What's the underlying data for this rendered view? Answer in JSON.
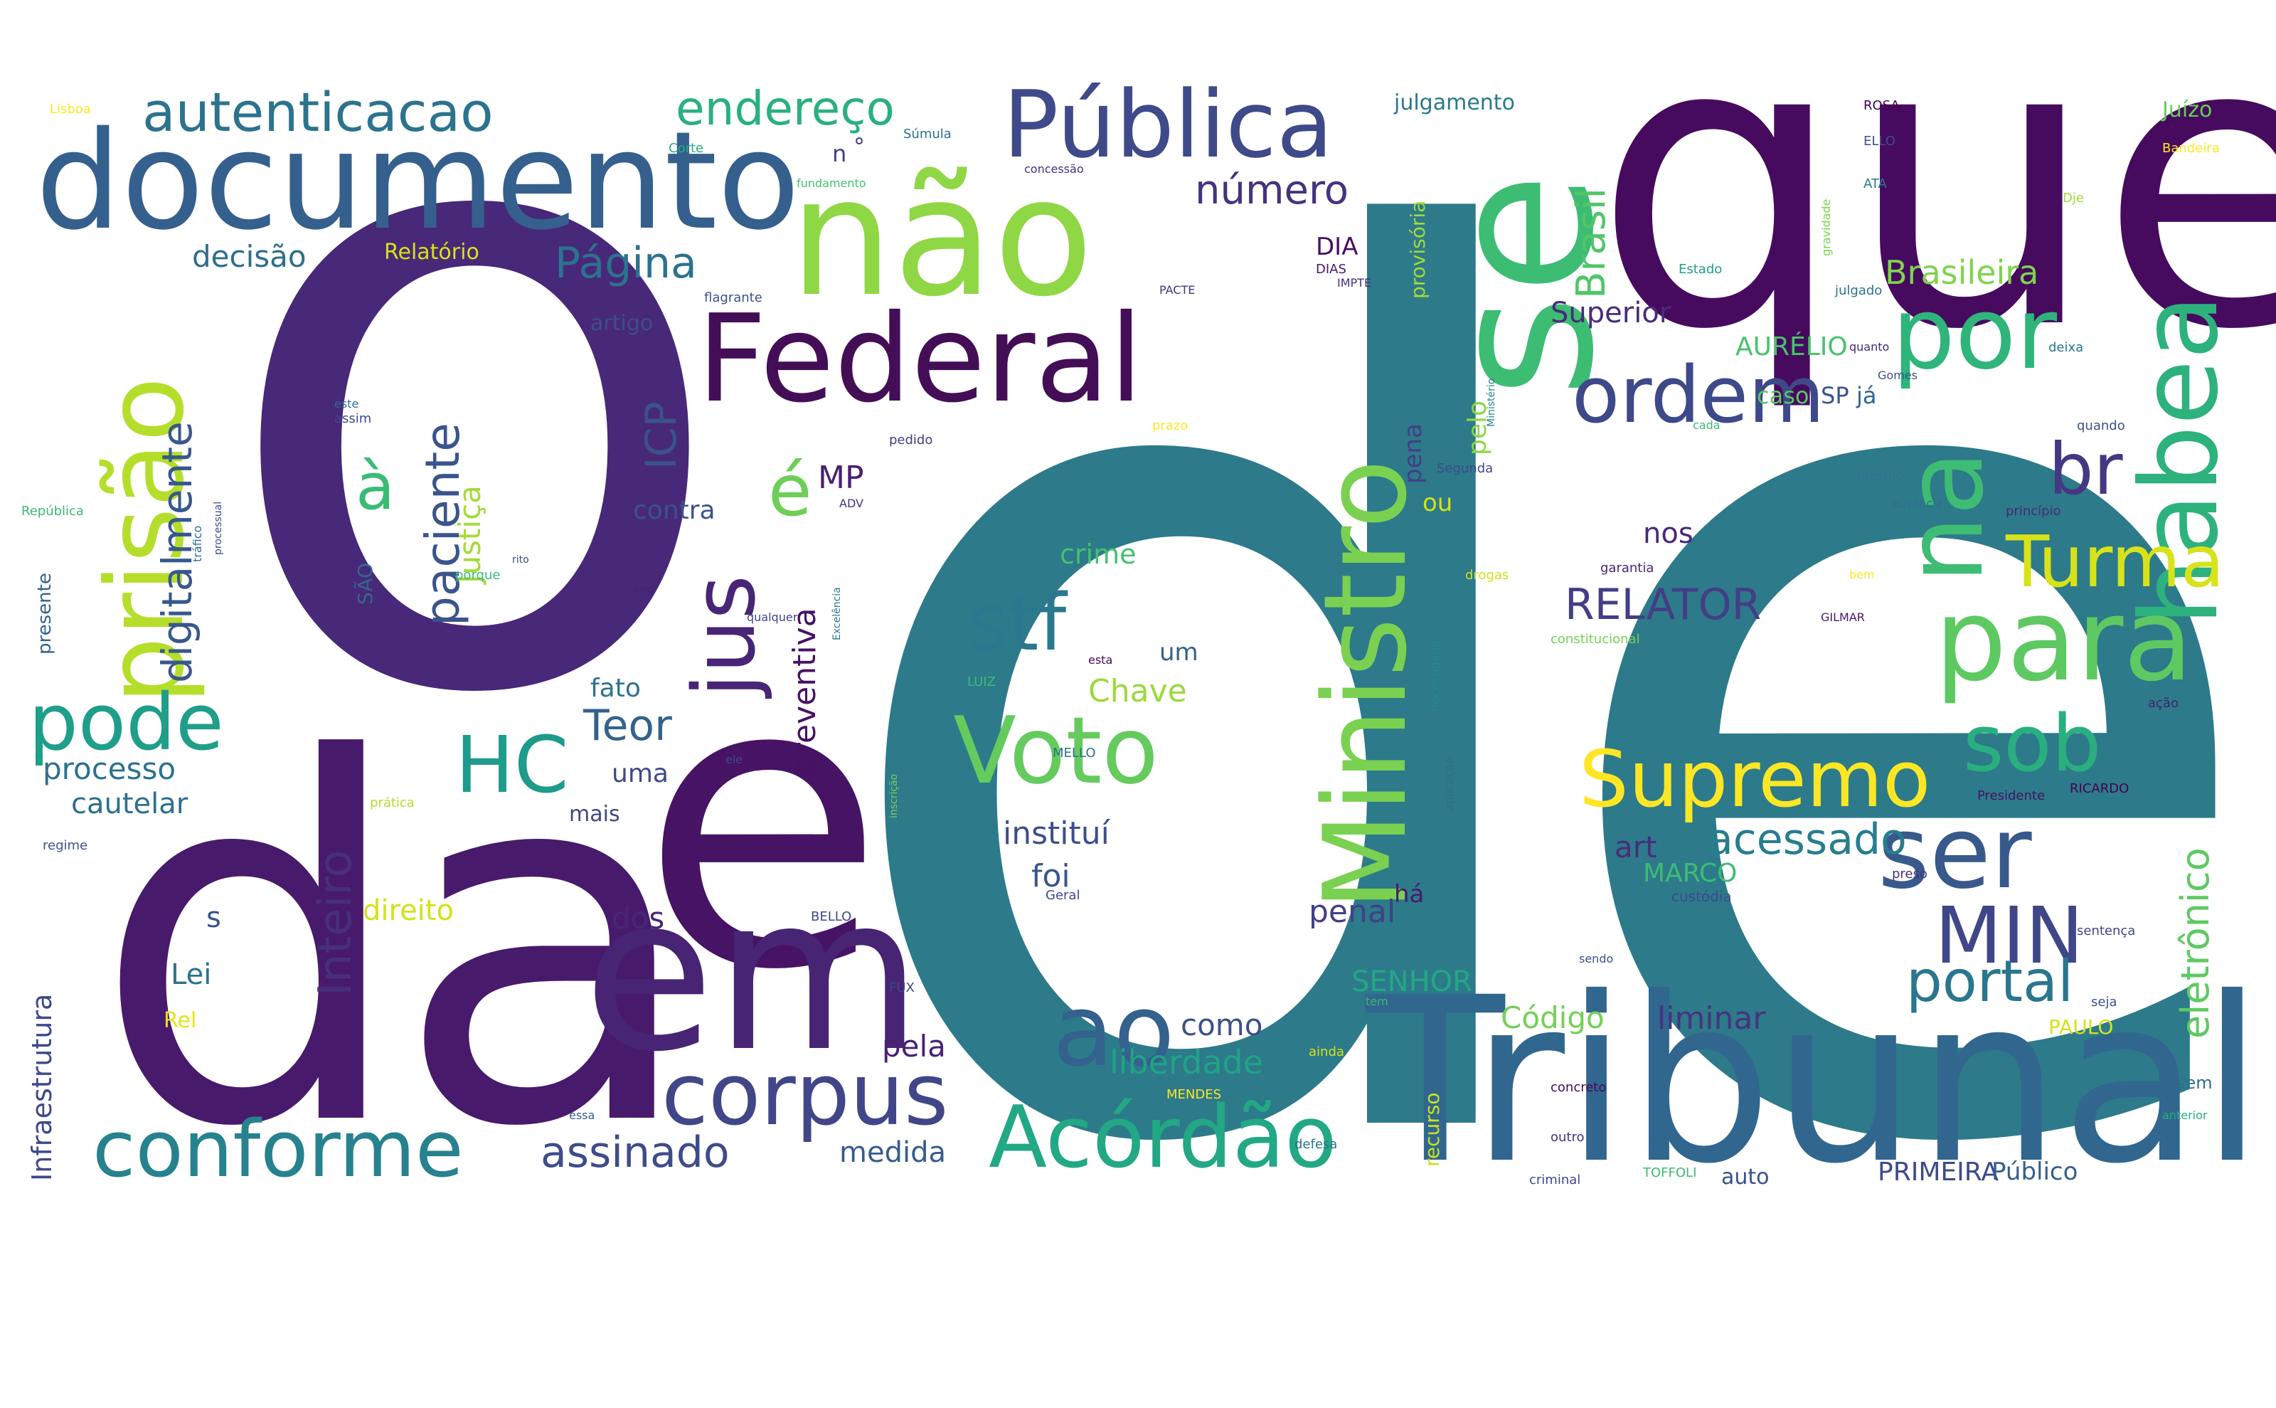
{
  "palette": {
    "purple_dark": "#440154",
    "purple": "#472a7a",
    "indigo": "#3b518b",
    "blue": "#2c718e",
    "teal": "#21908d",
    "green_teal": "#27ad81",
    "green": "#5cc863",
    "lime": "#aadc32",
    "yellow": "#fde725"
  },
  "words": [
    {
      "text": "de",
      "color": "#2d7a8a"
    },
    {
      "text": "o",
      "color": "#482878"
    },
    {
      "text": "que",
      "color": "#460b5e"
    },
    {
      "text": "da",
      "color": "#481a6c"
    },
    {
      "text": "Tribunal",
      "color": "#31678e"
    },
    {
      "text": "e",
      "color": "#471365"
    },
    {
      "text": "em",
      "color": "#482475"
    },
    {
      "text": "documento",
      "color": "#35608d"
    },
    {
      "text": "não",
      "color": "#8fd744"
    },
    {
      "text": "se",
      "color": "#3dbc74"
    },
    {
      "text": "Federal",
      "color": "#440e57"
    },
    {
      "text": "Pública",
      "color": "#3e4a89"
    },
    {
      "text": "Ministro",
      "color": "#7ad151"
    },
    {
      "text": "habea",
      "color": "#2db27d"
    },
    {
      "text": "por",
      "color": "#2fb47c"
    },
    {
      "text": "para",
      "color": "#5ec962"
    },
    {
      "text": "na",
      "color": "#3fbc73"
    },
    {
      "text": "prisão",
      "color": "#b5de2b"
    },
    {
      "text": "pode",
      "color": "#1f9e89"
    },
    {
      "text": "Voto",
      "color": "#65cb5e"
    },
    {
      "text": "corpus",
      "color": "#404688"
    },
    {
      "text": "conforme",
      "color": "#26828e"
    },
    {
      "text": "Acórdão",
      "color": "#22a884"
    },
    {
      "text": "ao",
      "color": "#34618d"
    },
    {
      "text": "ser",
      "color": "#38598c"
    },
    {
      "text": "sob",
      "color": "#29af7f"
    },
    {
      "text": "Supremo",
      "color": "#fde725"
    },
    {
      "text": "Turma",
      "color": "#d8e219"
    },
    {
      "text": "ordem",
      "color": "#3e4989"
    },
    {
      "text": "stf",
      "color": "#2a788e"
    },
    {
      "text": "HC",
      "color": "#1e9b8a"
    },
    {
      "text": "MIN",
      "color": "#3f4788"
    },
    {
      "text": "br",
      "color": "#453781"
    },
    {
      "text": "autenticacao",
      "color": "#2c738e"
    },
    {
      "text": "endereço",
      "color": "#2ab07f"
    },
    {
      "text": "jus",
      "color": "#482576"
    },
    {
      "text": "portal",
      "color": "#2a768e"
    },
    {
      "text": "é",
      "color": "#6ece58"
    },
    {
      "text": "à",
      "color": "#3bbb75"
    },
    {
      "text": "RELATOR",
      "color": "#433e85"
    },
    {
      "text": "acessado",
      "color": "#287d8e"
    },
    {
      "text": "digitalmente",
      "color": "#38588c"
    },
    {
      "text": "paciente",
      "color": "#3a548c"
    },
    {
      "text": "Página",
      "color": "#2c728e"
    },
    {
      "text": "número",
      "color": "#46327e"
    },
    {
      "text": "Teor",
      "color": "#33638d"
    },
    {
      "text": "Inteiro",
      "color": "#472f7d"
    },
    {
      "text": "assinado",
      "color": "#3e4c8a"
    },
    {
      "text": "Brasil",
      "color": "#52c569"
    },
    {
      "text": "ICP",
      "color": "#3b528b"
    },
    {
      "text": "eletrônico",
      "color": "#5ec962"
    },
    {
      "text": "Brasileira",
      "color": "#7fd34e"
    },
    {
      "text": "Superior",
      "color": "#472c7a"
    },
    {
      "text": "Justiça",
      "color": "#a5db36"
    },
    {
      "text": "liberdade",
      "color": "#20a386"
    },
    {
      "text": "decisão",
      "color": "#2e6e8e"
    },
    {
      "text": "processo",
      "color": "#2d718e"
    },
    {
      "text": "MP",
      "color": "#481f70"
    },
    {
      "text": "preventiva",
      "color": "#471164"
    },
    {
      "text": "instituí",
      "color": "#3c4f8a"
    },
    {
      "text": "Chave",
      "color": "#9bd93c"
    },
    {
      "text": "foi",
      "color": "#39558c"
    },
    {
      "text": "art",
      "color": "#472d7b"
    },
    {
      "text": "penal",
      "color": "#424086"
    },
    {
      "text": "liminar",
      "color": "#46337f"
    },
    {
      "text": "Código",
      "color": "#73d056"
    },
    {
      "text": "SENHOR",
      "color": "#22a884"
    },
    {
      "text": "MARCO",
      "color": "#3dbc74"
    },
    {
      "text": "AURÉLIO",
      "color": "#48c16e"
    },
    {
      "text": "pela",
      "color": "#482173"
    },
    {
      "text": "como",
      "color": "#3c4f8a"
    },
    {
      "text": "medida",
      "color": "#365c8d"
    },
    {
      "text": "dos",
      "color": "#482677"
    },
    {
      "text": "Lei",
      "color": "#2c728e"
    },
    {
      "text": "cautelar",
      "color": "#2e6f8e"
    },
    {
      "text": "direito",
      "color": "#d2e21b"
    },
    {
      "text": "crime",
      "color": "#45c06f"
    },
    {
      "text": "uma",
      "color": "#3f4889"
    },
    {
      "text": "nos",
      "color": "#482878"
    },
    {
      "text": "fato",
      "color": "#2c738e"
    },
    {
      "text": "contra",
      "color": "#3a538b"
    },
    {
      "text": "Infraestrutura",
      "color": "#3f4889"
    },
    {
      "text": "PRIMEIRA",
      "color": "#3e4a89"
    },
    {
      "text": "Público",
      "color": "#355f8d"
    },
    {
      "text": "julgamento",
      "color": "#2a788e"
    },
    {
      "text": "pelo",
      "color": "#8bd646"
    },
    {
      "text": "pena",
      "color": "#433e85"
    },
    {
      "text": "caso",
      "color": "#5ac864"
    },
    {
      "text": "SP",
      "color": "#3a548c"
    },
    {
      "text": "já",
      "color": "#31668e"
    },
    {
      "text": "há",
      "color": "#481b6d"
    },
    {
      "text": "ou",
      "color": "#d0e11c"
    },
    {
      "text": "um",
      "color": "#35608d"
    },
    {
      "text": "DIA",
      "color": "#471063"
    },
    {
      "text": "Relatório",
      "color": "#d8e219"
    },
    {
      "text": "Juízo",
      "color": "#67cc5c"
    },
    {
      "text": "mais",
      "color": "#3f4889"
    },
    {
      "text": "auto",
      "color": "#3b518b"
    },
    {
      "text": "s",
      "color": "#3a548c"
    },
    {
      "text": "Rel",
      "color": "#e5e419"
    },
    {
      "text": "SÃO",
      "color": "#31688e"
    },
    {
      "text": "provisória",
      "color": "#a2da37"
    },
    {
      "text": "artigo",
      "color": "#3d4e8a"
    },
    {
      "text": "presente",
      "color": "#33638d"
    },
    {
      "text": "n",
      "color": "#433e85"
    },
    {
      "text": "°",
      "color": "#433e85"
    },
    {
      "text": "PAULO",
      "color": "#d5e21a"
    },
    {
      "text": "recurso",
      "color": "#cae11f"
    },
    {
      "text": "Bandeira",
      "color": "#fde725"
    },
    {
      "text": "Segunda",
      "color": "#3f4788"
    },
    {
      "text": "Súmula",
      "color": "#2d708e"
    },
    {
      "text": "prática",
      "color": "#b2dd2d"
    },
    {
      "text": "flagrante",
      "color": "#3b518b"
    },
    {
      "text": "República",
      "color": "#3bbb75"
    },
    {
      "text": "Geral",
      "color": "#3f4889"
    },
    {
      "text": "concreto",
      "color": "#46075a"
    },
    {
      "text": "garantia",
      "color": "#482475"
    },
    {
      "text": "constitucional",
      "color": "#75d054"
    },
    {
      "text": "aplicação",
      "color": "#2e6e8e"
    },
    {
      "text": "necessidade",
      "color": "#23898e"
    },
    {
      "text": "Presidente",
      "color": "#471164"
    },
    {
      "text": "RICARDO",
      "color": "#440154"
    },
    {
      "text": "custódia",
      "color": "#3e4c8a"
    },
    {
      "text": "gravidade",
      "color": "#7ad151"
    },
    {
      "text": "julgado",
      "color": "#2c728e"
    },
    {
      "text": "Estado",
      "color": "#1fa088"
    },
    {
      "text": "quando",
      "color": "#3b528b"
    },
    {
      "text": "princípio",
      "color": "#482979"
    },
    {
      "text": "sentença",
      "color": "#3f4788"
    },
    {
      "text": "preso",
      "color": "#46337f"
    },
    {
      "text": "ação",
      "color": "#481f70"
    },
    {
      "text": "ainda",
      "color": "#d5e21a"
    },
    {
      "text": "defesa",
      "color": "#2c738e"
    },
    {
      "text": "criminal",
      "color": "#3e4a89"
    },
    {
      "text": "outro",
      "color": "#46327e"
    },
    {
      "text": "tráfico",
      "color": "#2d708e"
    },
    {
      "text": "drogas",
      "color": "#cde11d"
    },
    {
      "text": "regime",
      "color": "#39568c"
    },
    {
      "text": "porque",
      "color": "#3bbb75"
    },
    {
      "text": "assim",
      "color": "#3e4c8a"
    },
    {
      "text": "pedido",
      "color": "#433e85"
    },
    {
      "text": "prazo",
      "color": "#fde725"
    },
    {
      "text": "mesmo",
      "color": "#2b758e"
    },
    {
      "text": "Corte",
      "color": "#25ab82"
    },
    {
      "text": "fundamento",
      "color": "#46c06f"
    },
    {
      "text": "concessão",
      "color": "#472f7d"
    },
    {
      "text": "Lisboa",
      "color": "#fde725"
    },
    {
      "text": "ELLO",
      "color": "#3e4c8a"
    },
    {
      "text": "ROSA",
      "color": "#440154"
    },
    {
      "text": "ATA",
      "color": "#2a778e"
    },
    {
      "text": "Dje",
      "color": "#a0da39"
    },
    {
      "text": "deixa",
      "color": "#2a778e"
    },
    {
      "text": "seja",
      "color": "#3b518b"
    },
    {
      "text": "sem",
      "color": "#2e6e8e"
    },
    {
      "text": "anterior",
      "color": "#26ad81"
    },
    {
      "text": "BELLO",
      "color": "#3e4989"
    },
    {
      "text": "MENDES",
      "color": "#fde725"
    },
    {
      "text": "LUIZ",
      "color": "#3bbb75"
    },
    {
      "text": "MELLO",
      "color": "#2f6c8e"
    },
    {
      "text": "DIAS",
      "color": "#481769"
    },
    {
      "text": "TOFFOLI",
      "color": "#3bbb75"
    },
    {
      "text": "FUX",
      "color": "#3f4788"
    },
    {
      "text": "inscrição",
      "color": "#7ad151"
    },
    {
      "text": "Excelência",
      "color": "#2a778e"
    },
    {
      "text": "Ministério",
      "color": "#25848e"
    },
    {
      "text": "esta",
      "color": "#46075a"
    },
    {
      "text": "este",
      "color": "#2e6e8e"
    },
    {
      "text": "essa",
      "color": "#38598c"
    },
    {
      "text": "ele",
      "color": "#3e4c8a"
    },
    {
      "text": "ano",
      "color": "#482173"
    },
    {
      "text": "tem",
      "color": "#3bbb75"
    },
    {
      "text": "Gomes",
      "color": "#3b518b"
    },
    {
      "text": "rito",
      "color": "#3f4788"
    },
    {
      "text": "PACTE",
      "color": "#46327e"
    },
    {
      "text": "IMPTE",
      "color": "#46327e"
    },
    {
      "text": "ADV",
      "color": "#46327e"
    },
    {
      "text": "ausência",
      "color": "#2e6e8e"
    },
    {
      "text": "qualquer",
      "color": "#3f4788"
    },
    {
      "text": "processual",
      "color": "#3e4c8a"
    },
    {
      "text": "quanto",
      "color": "#482878"
    },
    {
      "text": "cada",
      "color": "#3bbb75"
    },
    {
      "text": "sendo",
      "color": "#3b518b"
    },
    {
      "text": "bem",
      "color": "#fde725"
    },
    {
      "text": "GILMAR",
      "color": "#481769"
    }
  ]
}
